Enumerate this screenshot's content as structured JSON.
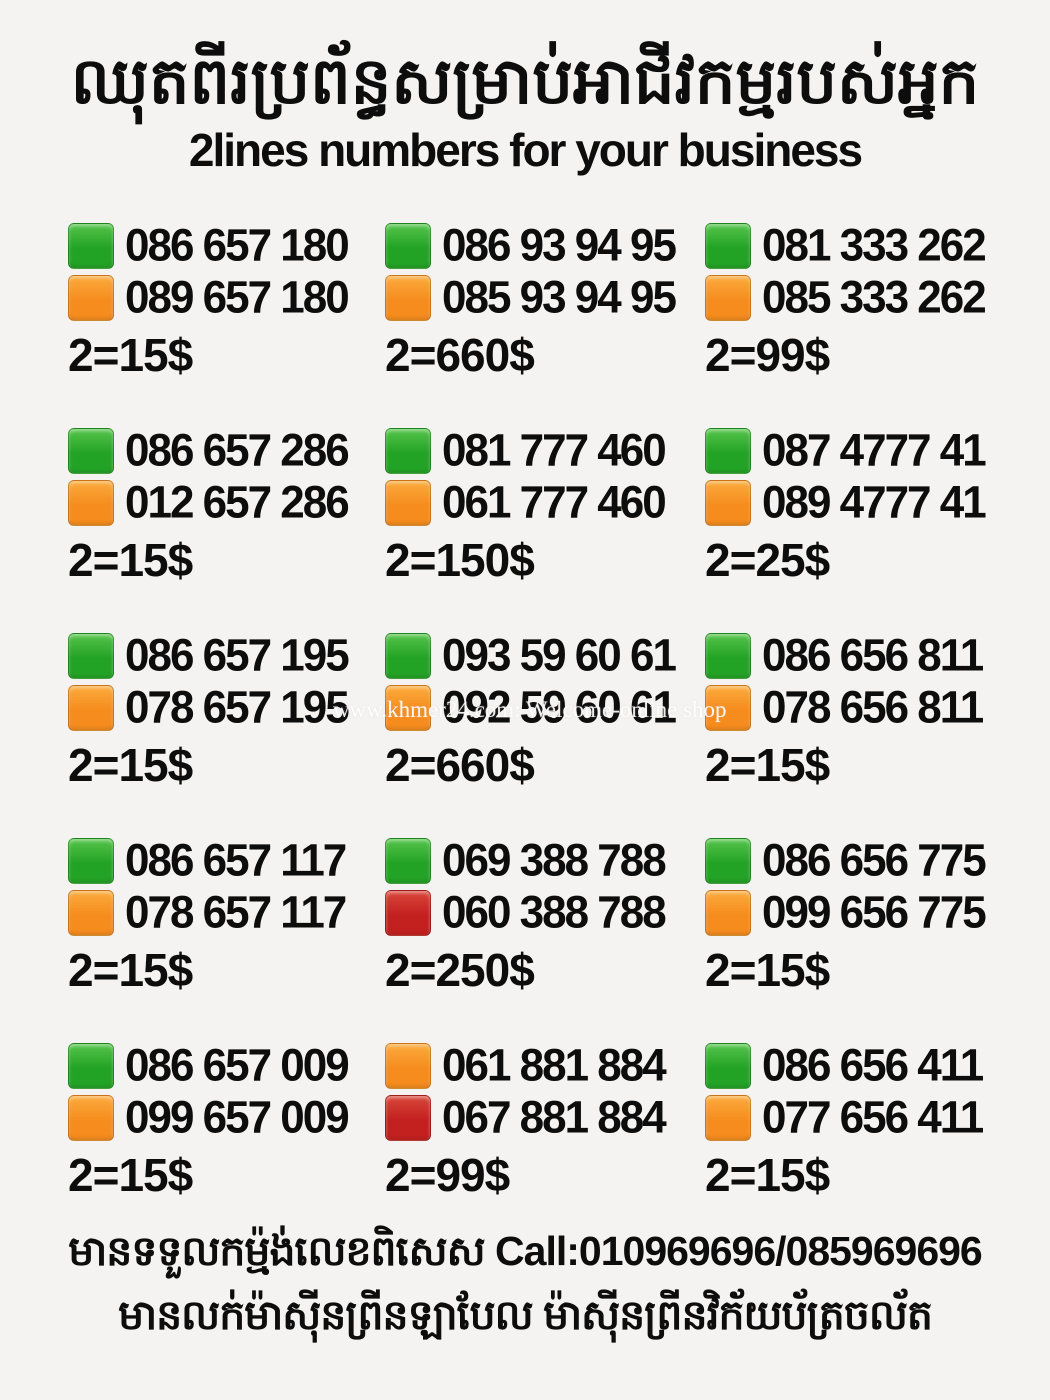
{
  "page": {
    "title_khmer": "ឈុតពីរប្រព័ន្ធសម្រាប់អាជីវកម្មរបស់អ្នក",
    "title_english": "2lines numbers for your business",
    "watermark": "www.khmer24.com: Welcome-online shop",
    "footer_line1": "មានទទួលកម្ម៉ង់លេខពិសេស Call:010969696/085969696",
    "footer_line2": "មានលក់ម៉ាស៊ីនព្រីនឡាបែល ម៉ាស៊ីនព្រីនវិក័យប័ត្រចល័ត"
  },
  "colors": {
    "background": "#f4f3f1",
    "text": "#0d0d0d",
    "green": {
      "top": "#55c44b",
      "base": "#23a325"
    },
    "orange": {
      "top": "#fbab3d",
      "base": "#f68c1e"
    },
    "red": {
      "top": "#d9473a",
      "base": "#c32020"
    }
  },
  "listings": [
    {
      "price": "2=15$",
      "pair": [
        {
          "color": "green",
          "number": "086 657 180"
        },
        {
          "color": "orange",
          "number": "089 657 180"
        }
      ]
    },
    {
      "price": "2=660$",
      "pair": [
        {
          "color": "green",
          "number": "086 93 94 95"
        },
        {
          "color": "orange",
          "number": "085 93 94 95"
        }
      ]
    },
    {
      "price": "2=99$",
      "pair": [
        {
          "color": "green",
          "number": "081 333 262"
        },
        {
          "color": "orange",
          "number": "085 333 262"
        }
      ]
    },
    {
      "price": "2=15$",
      "pair": [
        {
          "color": "green",
          "number": "086 657 286"
        },
        {
          "color": "orange",
          "number": "012 657 286"
        }
      ]
    },
    {
      "price": "2=150$",
      "pair": [
        {
          "color": "green",
          "number": "081 777 460"
        },
        {
          "color": "orange",
          "number": "061 777 460"
        }
      ]
    },
    {
      "price": "2=25$",
      "pair": [
        {
          "color": "green",
          "number": "087 4777 41"
        },
        {
          "color": "orange",
          "number": "089 4777 41"
        }
      ]
    },
    {
      "price": "2=15$",
      "pair": [
        {
          "color": "green",
          "number": "086 657 195"
        },
        {
          "color": "orange",
          "number": "078 657 195"
        }
      ]
    },
    {
      "price": "2=660$",
      "pair": [
        {
          "color": "green",
          "number": "093 59 60 61"
        },
        {
          "color": "orange",
          "number": "092 59 60 61"
        }
      ]
    },
    {
      "price": "2=15$",
      "pair": [
        {
          "color": "green",
          "number": "086 656 811"
        },
        {
          "color": "orange",
          "number": "078 656 811"
        }
      ]
    },
    {
      "price": "2=15$",
      "pair": [
        {
          "color": "green",
          "number": "086 657 117"
        },
        {
          "color": "orange",
          "number": "078 657 117"
        }
      ]
    },
    {
      "price": "2=250$",
      "pair": [
        {
          "color": "green",
          "number": "069 388 788"
        },
        {
          "color": "red",
          "number": "060 388 788"
        }
      ]
    },
    {
      "price": "2=15$",
      "pair": [
        {
          "color": "green",
          "number": "086 656 775"
        },
        {
          "color": "orange",
          "number": "099 656 775"
        }
      ]
    },
    {
      "price": "2=15$",
      "pair": [
        {
          "color": "green",
          "number": "086 657 009"
        },
        {
          "color": "orange",
          "number": "099 657 009"
        }
      ]
    },
    {
      "price": "2=99$",
      "pair": [
        {
          "color": "orange",
          "number": "061 881 884"
        },
        {
          "color": "red",
          "number": "067 881 884"
        }
      ]
    },
    {
      "price": "2=15$",
      "pair": [
        {
          "color": "green",
          "number": "086 656 411"
        },
        {
          "color": "orange",
          "number": "077 656 411"
        }
      ]
    }
  ]
}
